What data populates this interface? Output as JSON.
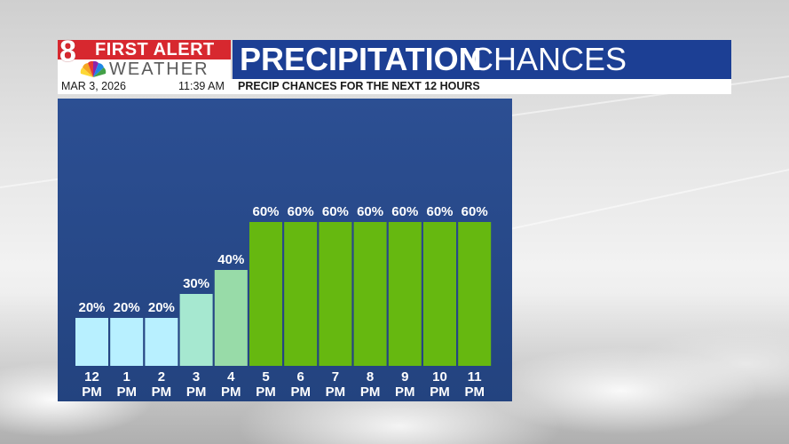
{
  "header": {
    "logo_top": "FIRST ALERT",
    "logo_bottom": "WEATHER",
    "logo_number": "8",
    "title_bold": "PRECIPITATION",
    "title_light": "CHANCES",
    "date": "MAR 3, 2026",
    "time": "11:39 AM",
    "subtitle": "PRECIP CHANCES FOR THE NEXT 12 HOURS"
  },
  "colors": {
    "title_bar": "#1c3f94",
    "logo_red": "#d7282f",
    "bar_low": "#b8f0ff",
    "bar_mid": "#a6e8d0",
    "bar_mid2": "#98dba8",
    "bar_high": "#66b810"
  },
  "chart_data": {
    "type": "bar",
    "title": "",
    "xlabel": "",
    "ylabel": "",
    "ylim": [
      0,
      100
    ],
    "grid": false,
    "categories": [
      "12 PM",
      "1 PM",
      "2 PM",
      "3 PM",
      "4 PM",
      "5 PM",
      "6 PM",
      "7 PM",
      "8 PM",
      "9 PM",
      "10 PM",
      "11 PM"
    ],
    "values": [
      20,
      20,
      20,
      30,
      40,
      60,
      60,
      60,
      60,
      60,
      60,
      60
    ],
    "value_labels": [
      "20%",
      "20%",
      "20%",
      "30%",
      "40%",
      "60%",
      "60%",
      "60%",
      "60%",
      "60%",
      "60%",
      "60%"
    ],
    "bar_colors": [
      "#b8f0ff",
      "#b8f0ff",
      "#b8f0ff",
      "#a6e8d0",
      "#98dba8",
      "#66b810",
      "#66b810",
      "#66b810",
      "#66b810",
      "#66b810",
      "#66b810",
      "#66b810"
    ]
  }
}
